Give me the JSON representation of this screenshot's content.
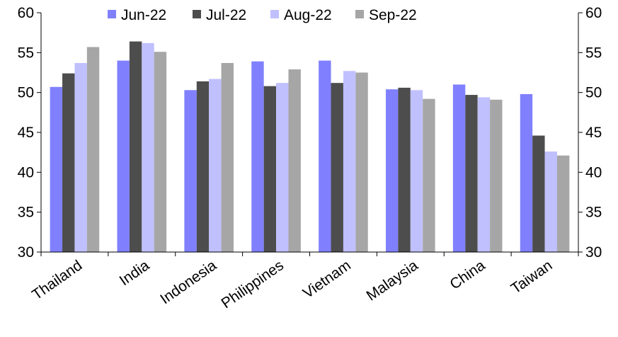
{
  "chart_data": {
    "type": "bar",
    "title": "",
    "xlabel": "",
    "ylabel": "",
    "ylim": [
      30,
      60
    ],
    "y_ticks": [
      "60",
      "55",
      "50",
      "45",
      "40",
      "35",
      "30"
    ],
    "secondary_y_ticks": [
      "60",
      "55",
      "50",
      "45",
      "40",
      "35",
      "30"
    ],
    "legend_position": "top",
    "categories": [
      "Thailand",
      "India",
      "Indonesia",
      "Philippines",
      "Vietnam",
      "Malaysia",
      "China",
      "Taiwan"
    ],
    "series": [
      {
        "name": "Jun-22",
        "color": "#8080ff",
        "values": [
          50.7,
          54.0,
          50.3,
          53.9,
          54.0,
          50.4,
          51.0,
          49.8
        ]
      },
      {
        "name": "Jul-22",
        "color": "#4d4d4d",
        "values": [
          52.4,
          56.4,
          51.4,
          50.8,
          51.2,
          50.6,
          49.7,
          44.6
        ]
      },
      {
        "name": "Aug-22",
        "color": "#c0c0ff",
        "values": [
          53.7,
          56.2,
          51.7,
          51.2,
          52.7,
          50.3,
          49.4,
          42.6
        ]
      },
      {
        "name": "Sep-22",
        "color": "#a6a6a6",
        "values": [
          55.7,
          55.1,
          53.7,
          52.9,
          52.5,
          49.2,
          49.1,
          42.1
        ]
      }
    ]
  }
}
